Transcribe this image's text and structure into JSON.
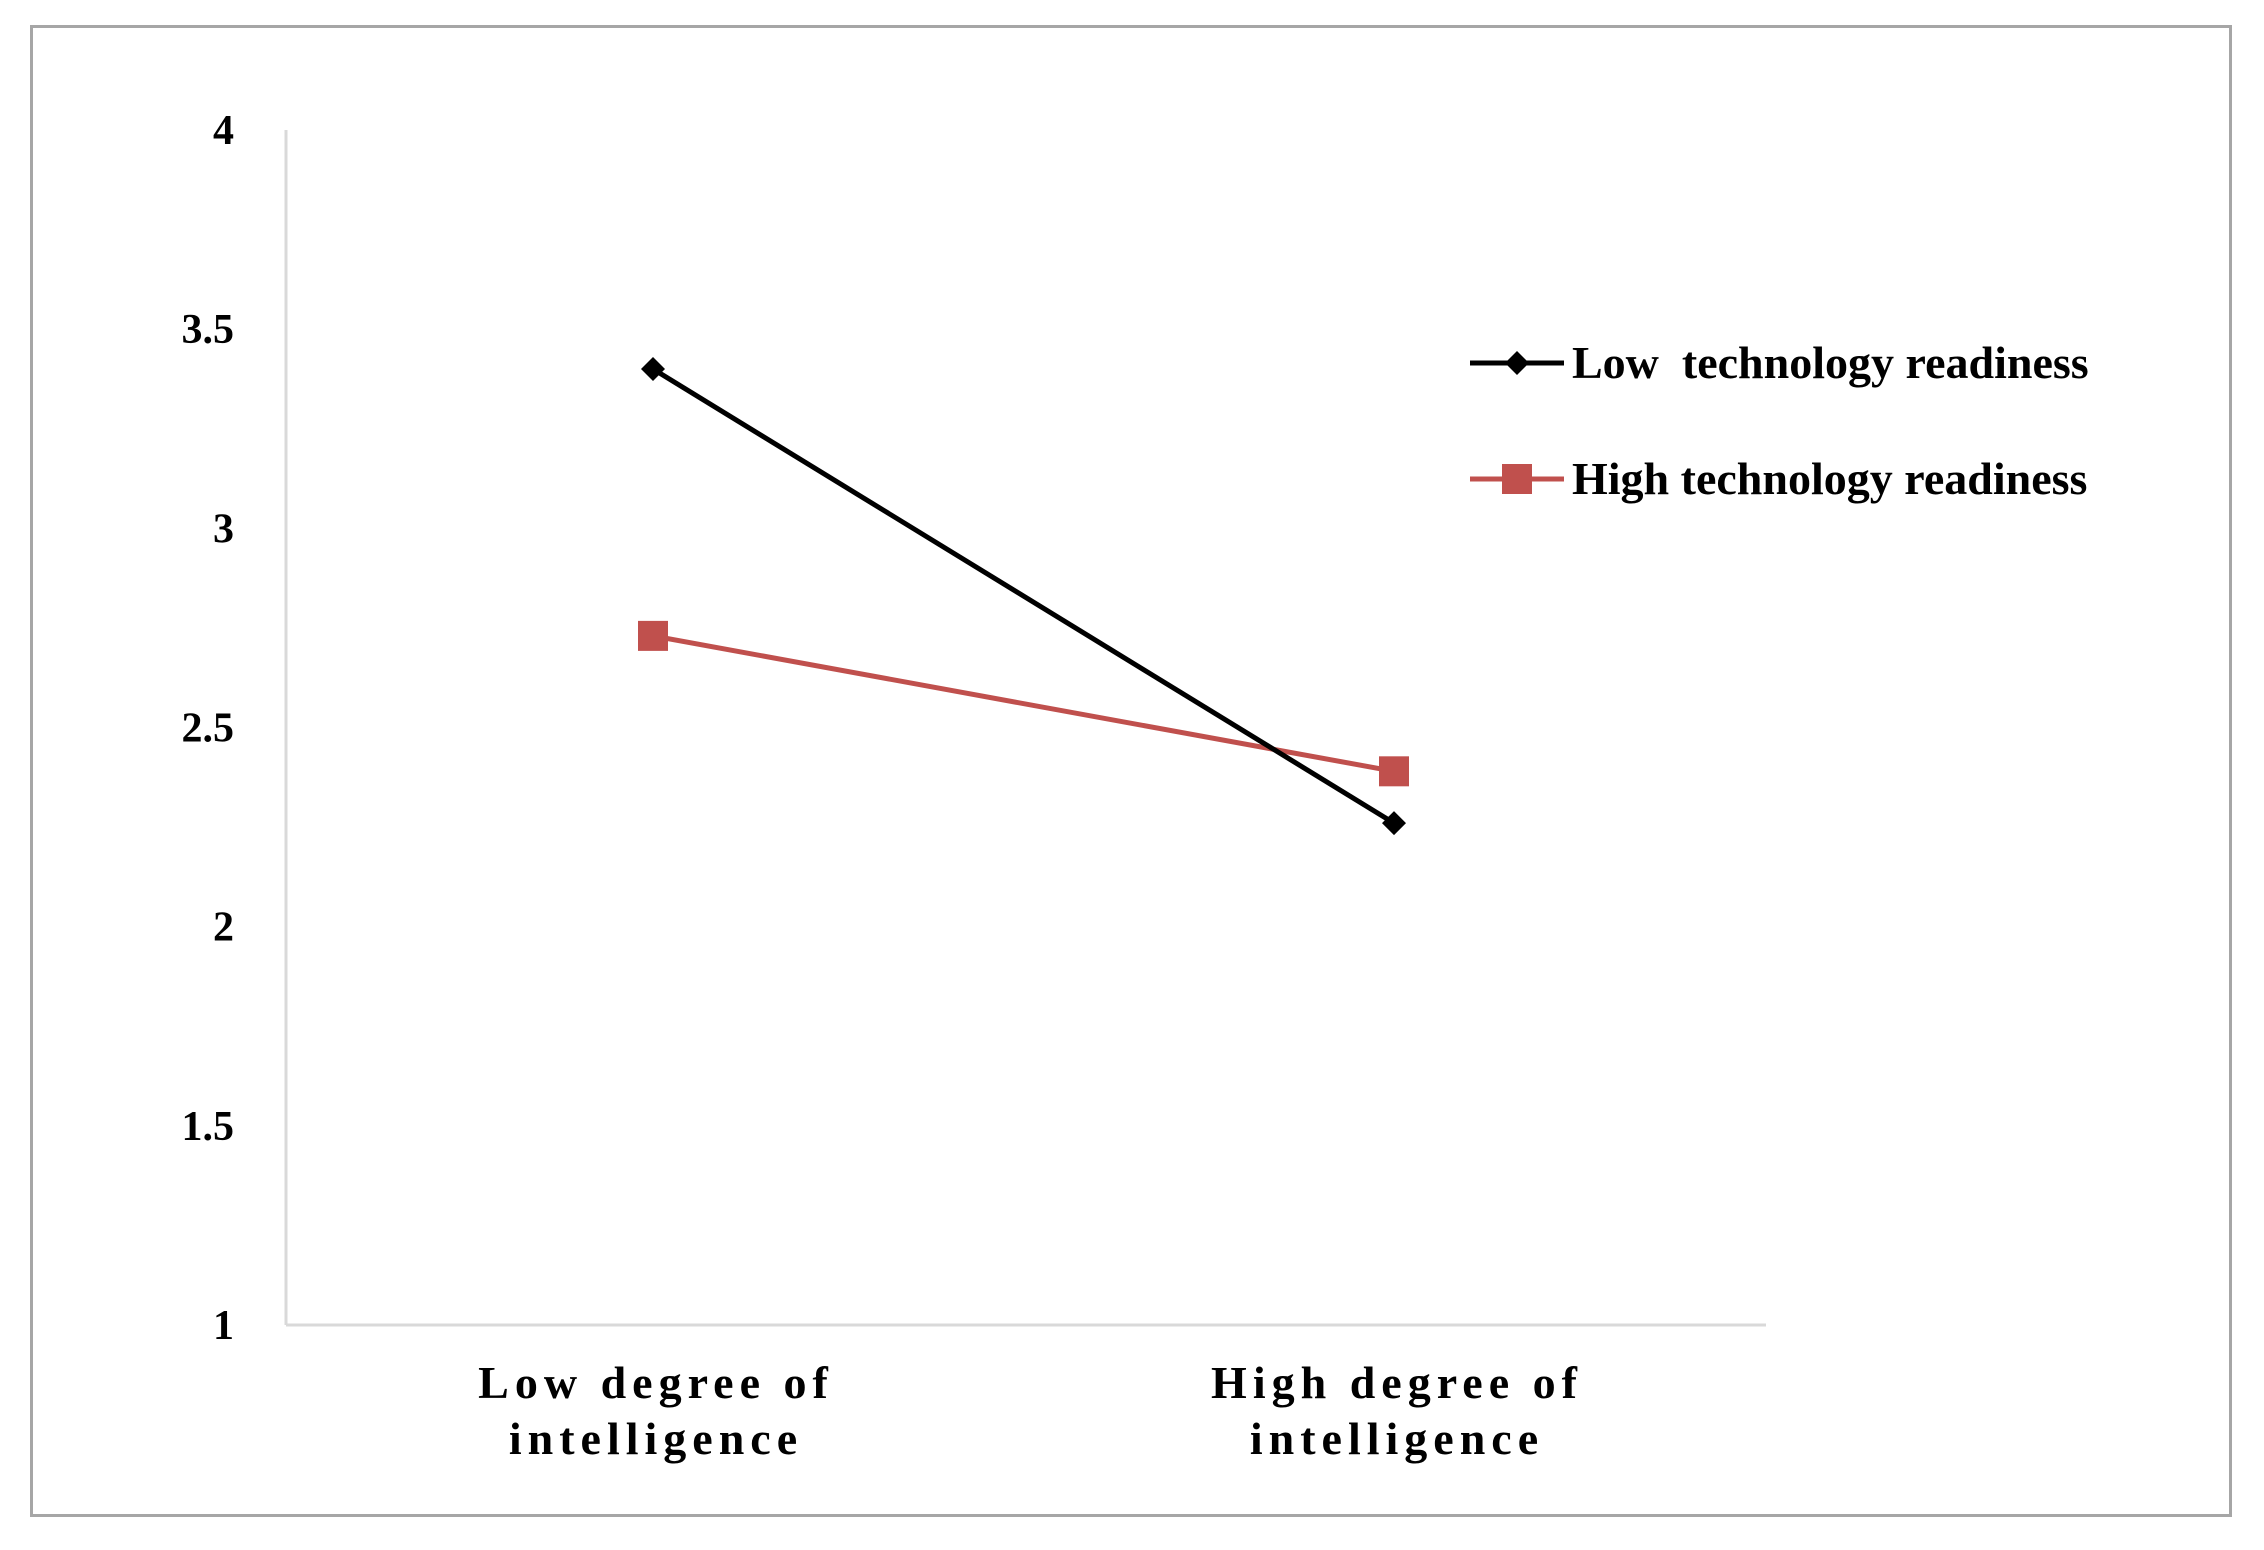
{
  "chart_data": {
    "type": "line",
    "title": "",
    "xlabel": "",
    "ylabel": "",
    "categories": [
      [
        "Low degree of",
        "intelligence"
      ],
      [
        "High degree of",
        "intelligence"
      ]
    ],
    "ylim": [
      1,
      4
    ],
    "yticks": [
      "1",
      "1.5",
      "2",
      "2.5",
      "3",
      "3.5",
      "4"
    ],
    "grid": false,
    "legend_position": "right",
    "series": [
      {
        "name": "Low  technology readiness",
        "values": [
          3.4,
          2.26
        ],
        "color": "#000000",
        "marker": "diamond"
      },
      {
        "name": "High technology readiness",
        "values": [
          2.73,
          2.39
        ],
        "color": "#c0504d",
        "marker": "square"
      }
    ]
  }
}
